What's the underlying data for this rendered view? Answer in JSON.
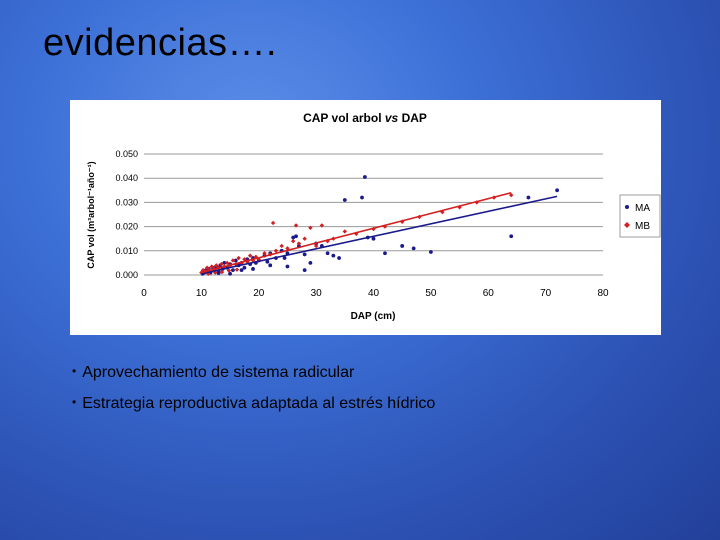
{
  "slide": {
    "title": "evidencias….",
    "bullets": [
      "Aprovechamiento de sistema radicular",
      "Estrategia reproductiva adaptada al estrés hídrico"
    ]
  },
  "colors": {
    "MA": "#1a1a8c",
    "MB": "#d42020",
    "background": "#3c6fd6"
  },
  "chart_data": {
    "type": "scatter",
    "title_parts": [
      "CAP vol arbol ",
      "vs",
      " DAP"
    ],
    "xlabel": "DAP (cm)",
    "ylabel": "CAP vol (m³arbol⁻¹año⁻¹)",
    "xlim": [
      0,
      80
    ],
    "ylim": [
      0,
      0.05
    ],
    "x_ticks": [
      "0",
      "10",
      "20",
      "30",
      "40",
      "50",
      "60",
      "70",
      "80"
    ],
    "y_ticks": [
      "0.000",
      "0.010",
      "0.020",
      "0.030",
      "0.040",
      "0.050"
    ],
    "grid": "horizontal",
    "legend_position": "right",
    "series": [
      {
        "name": "MA",
        "color": "#1a1a8c",
        "trend": [
          [
            10,
            0.0005
          ],
          [
            72,
            0.0325
          ]
        ],
        "points": [
          [
            10.2,
            0.0005
          ],
          [
            10.5,
            0.001
          ],
          [
            10.8,
            0.002
          ],
          [
            11,
            0.0015
          ],
          [
            11.3,
            0.0025
          ],
          [
            11.6,
            0.001
          ],
          [
            12,
            0.003
          ],
          [
            12.3,
            0.002
          ],
          [
            12.6,
            0.0035
          ],
          [
            13,
            0.0015
          ],
          [
            13.3,
            0.004
          ],
          [
            13.7,
            0.0025
          ],
          [
            14,
            0.005
          ],
          [
            14.5,
            0.003
          ],
          [
            15,
            0.0045
          ],
          [
            15.5,
            0.002
          ],
          [
            16,
            0.006
          ],
          [
            16.5,
            0.004
          ],
          [
            17,
            0.005
          ],
          [
            17.5,
            0.003
          ],
          [
            18,
            0.0065
          ],
          [
            18.5,
            0.0045
          ],
          [
            19,
            0.007
          ],
          [
            19.5,
            0.005
          ],
          [
            20,
            0.006
          ],
          [
            21,
            0.008
          ],
          [
            21.5,
            0.0055
          ],
          [
            22,
            0.009
          ],
          [
            23,
            0.007
          ],
          [
            24,
            0.01
          ],
          [
            24.5,
            0.007
          ],
          [
            25,
            0.009
          ],
          [
            26,
            0.0155
          ],
          [
            26.5,
            0.016
          ],
          [
            27,
            0.012
          ],
          [
            28,
            0.0085
          ],
          [
            29,
            0.005
          ],
          [
            30,
            0.013
          ],
          [
            31,
            0.012
          ],
          [
            32,
            0.009
          ],
          [
            33,
            0.008
          ],
          [
            34,
            0.007
          ],
          [
            35,
            0.031
          ],
          [
            38,
            0.032
          ],
          [
            38.5,
            0.0405
          ],
          [
            39,
            0.0155
          ],
          [
            40,
            0.015
          ],
          [
            42,
            0.009
          ],
          [
            45,
            0.012
          ],
          [
            47,
            0.011
          ],
          [
            50,
            0.0095
          ],
          [
            64,
            0.016
          ],
          [
            67,
            0.032
          ],
          [
            72,
            0.035
          ],
          [
            15,
            0.0005
          ],
          [
            13,
            0.0008
          ],
          [
            17,
            0.002
          ],
          [
            19,
            0.0025
          ],
          [
            22,
            0.004
          ],
          [
            25,
            0.0035
          ],
          [
            28,
            0.002
          ]
        ]
      },
      {
        "name": "MB",
        "color": "#d42020",
        "trend": [
          [
            10,
            0.001
          ],
          [
            64,
            0.034
          ]
        ],
        "points": [
          [
            10,
            0.001
          ],
          [
            10.3,
            0.002
          ],
          [
            10.7,
            0.0015
          ],
          [
            11,
            0.003
          ],
          [
            11.4,
            0.002
          ],
          [
            11.8,
            0.0035
          ],
          [
            12.2,
            0.0025
          ],
          [
            12.6,
            0.004
          ],
          [
            13,
            0.003
          ],
          [
            13.5,
            0.0045
          ],
          [
            14,
            0.0035
          ],
          [
            14.5,
            0.005
          ],
          [
            15,
            0.004
          ],
          [
            15.5,
            0.006
          ],
          [
            16,
            0.0045
          ],
          [
            16.5,
            0.007
          ],
          [
            17,
            0.005
          ],
          [
            17.5,
            0.0065
          ],
          [
            18,
            0.0055
          ],
          [
            18.5,
            0.008
          ],
          [
            19,
            0.006
          ],
          [
            19.5,
            0.0075
          ],
          [
            20,
            0.0065
          ],
          [
            21,
            0.009
          ],
          [
            22,
            0.0085
          ],
          [
            22.5,
            0.0215
          ],
          [
            23,
            0.01
          ],
          [
            24,
            0.012
          ],
          [
            25,
            0.011
          ],
          [
            26,
            0.014
          ],
          [
            26.5,
            0.0205
          ],
          [
            27,
            0.013
          ],
          [
            28,
            0.015
          ],
          [
            29,
            0.0195
          ],
          [
            30,
            0.012
          ],
          [
            31,
            0.0205
          ],
          [
            32,
            0.014
          ],
          [
            33,
            0.015
          ],
          [
            35,
            0.018
          ],
          [
            37,
            0.017
          ],
          [
            40,
            0.019
          ],
          [
            42,
            0.02
          ],
          [
            45,
            0.022
          ],
          [
            48,
            0.024
          ],
          [
            52,
            0.026
          ],
          [
            55,
            0.028
          ],
          [
            58,
            0.03
          ],
          [
            61,
            0.032
          ],
          [
            64,
            0.033
          ],
          [
            11.2,
            0.0005
          ],
          [
            12.4,
            0.001
          ],
          [
            13.6,
            0.0012
          ],
          [
            14.8,
            0.0018
          ],
          [
            16.2,
            0.0022
          ]
        ]
      }
    ]
  }
}
